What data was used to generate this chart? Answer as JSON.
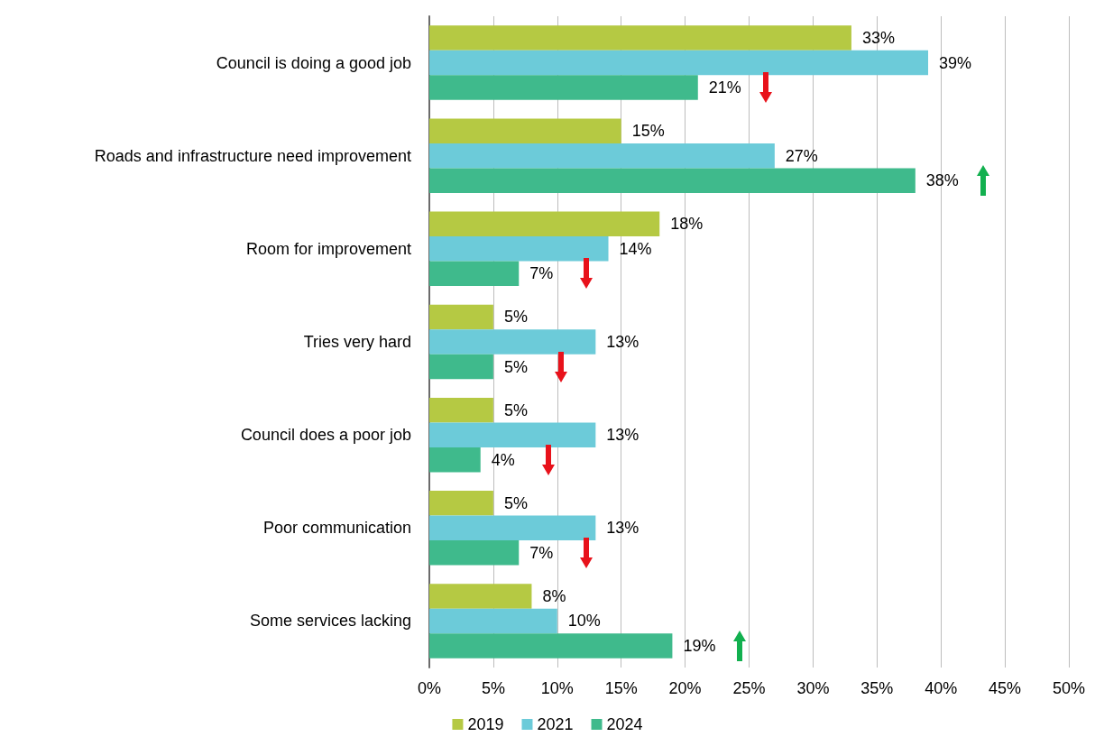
{
  "chart_data": {
    "type": "bar",
    "orientation": "horizontal",
    "categories": [
      "Council is doing a good job",
      "Roads and infrastructure need improvement",
      "Room for improvement",
      "Tries very hard",
      "Council does a poor job",
      "Poor communication",
      "Some services lacking"
    ],
    "series": [
      {
        "name": "2019",
        "color": "#b5c943",
        "values": [
          33,
          15,
          18,
          5,
          5,
          5,
          8
        ],
        "value_labels": [
          "33%",
          "15%",
          "18%",
          "5%",
          "5%",
          "5%",
          "8%"
        ]
      },
      {
        "name": "2021",
        "color": "#6ccbd9",
        "values": [
          39,
          27,
          14,
          13,
          13,
          13,
          10
        ],
        "value_labels": [
          "39%",
          "27%",
          "14%",
          "13%",
          "13%",
          "13%",
          "10%"
        ]
      },
      {
        "name": "2024",
        "color": "#3fba8c",
        "values": [
          21,
          38,
          7,
          5,
          4,
          7,
          19
        ],
        "value_labels": [
          "21%",
          "38%",
          "7%",
          "5%",
          "4%",
          "7%",
          "19%"
        ]
      }
    ],
    "xlim": [
      0,
      50
    ],
    "xticks": [
      {
        "value": 0,
        "label": "0%"
      },
      {
        "value": 5,
        "label": "5%"
      },
      {
        "value": 10,
        "label": "10%"
      },
      {
        "value": 15,
        "label": "15%"
      },
      {
        "value": 20,
        "label": "20%"
      },
      {
        "value": 25,
        "label": "25%"
      },
      {
        "value": 30,
        "label": "30%"
      },
      {
        "value": 35,
        "label": "35%"
      },
      {
        "value": 40,
        "label": "40%"
      },
      {
        "value": 45,
        "label": "45%"
      },
      {
        "value": 50,
        "label": "50%"
      }
    ],
    "grid": "x",
    "legend": "bottom"
  }
}
